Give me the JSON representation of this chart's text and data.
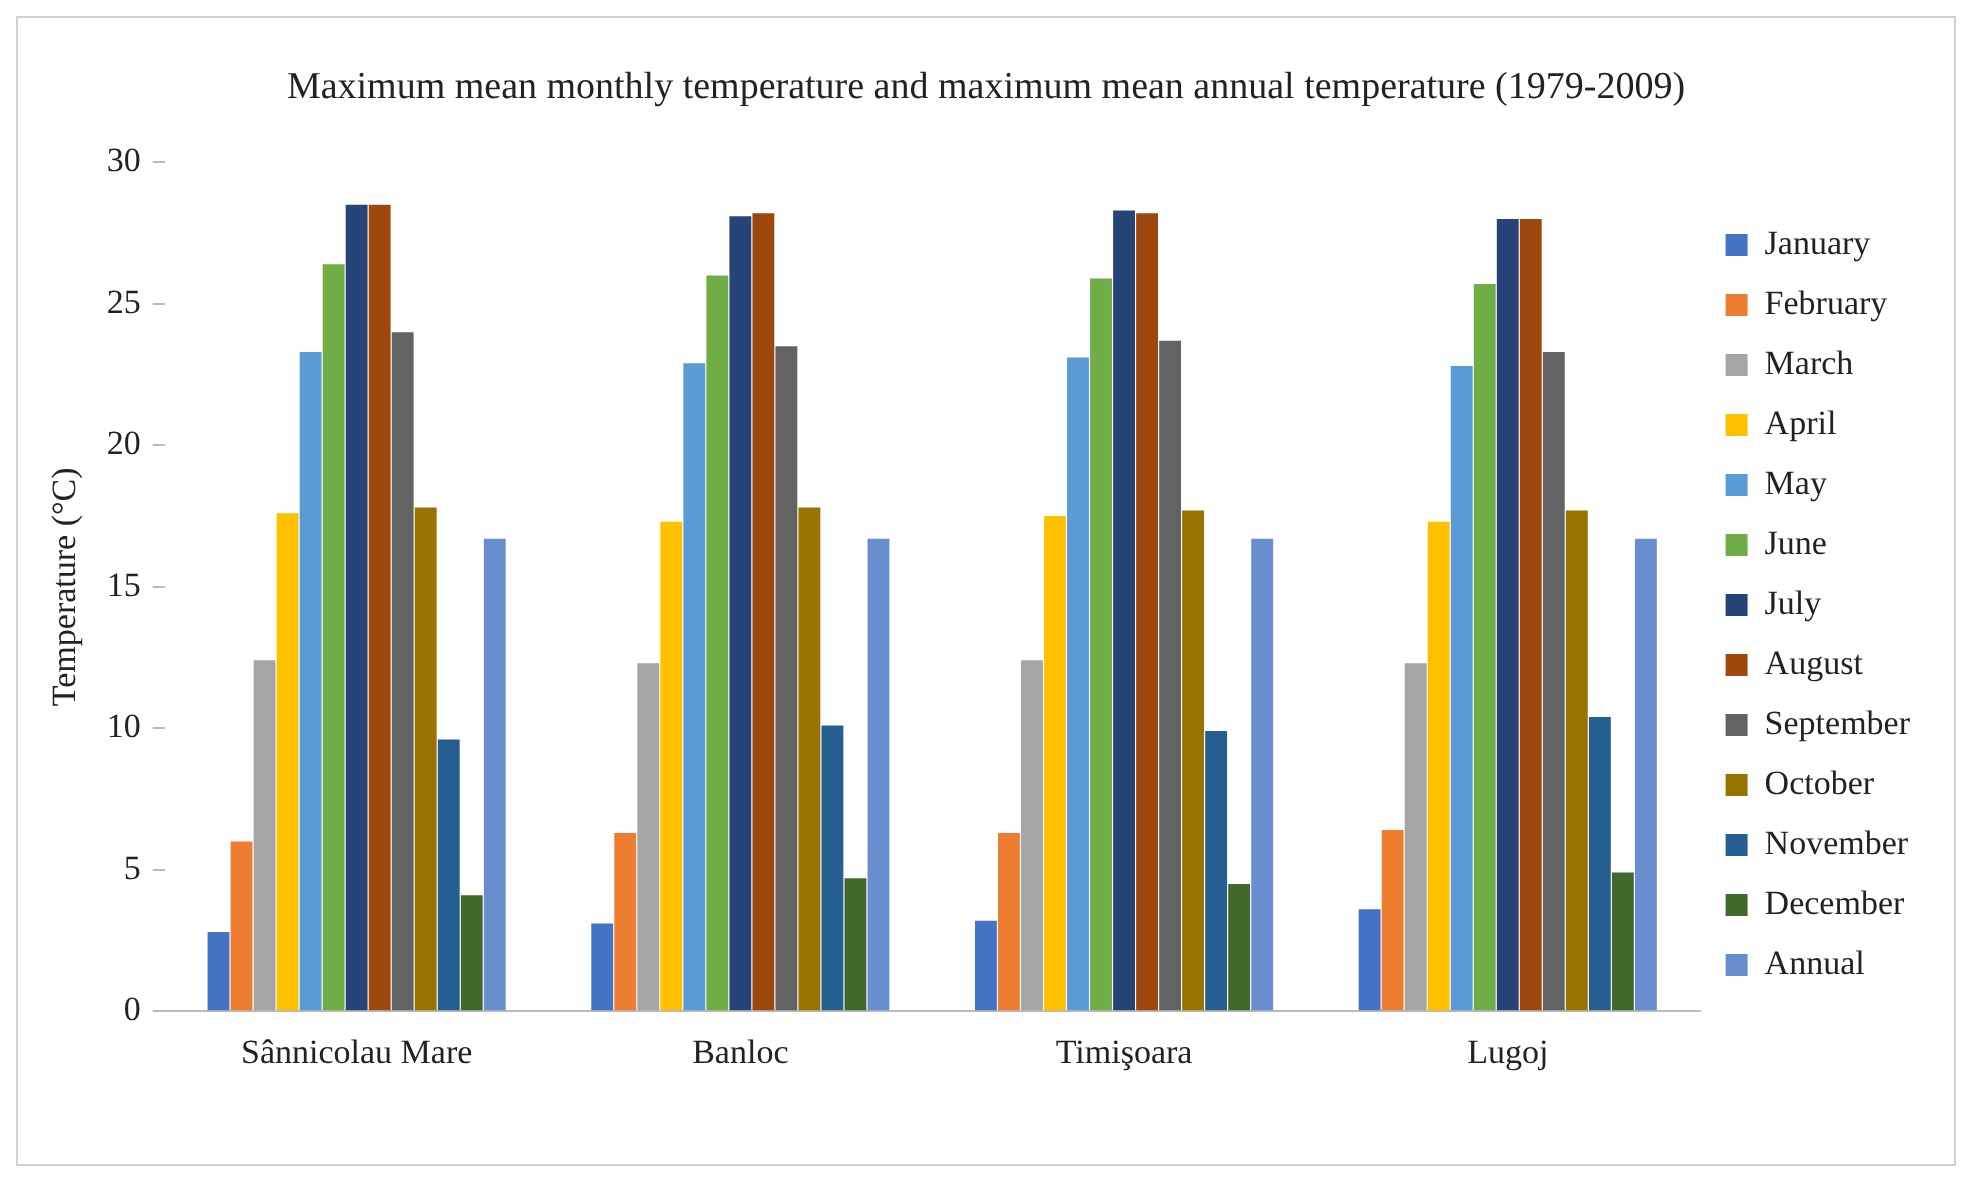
{
  "chart_data": {
    "type": "bar",
    "title": "Maximum mean monthly temperature and maximum mean annual temperature (1979-2009)",
    "ylabel": "Temperature (°C)",
    "categories": [
      "Sânnicolau Mare",
      "Banloc",
      "Timişoara",
      "Lugoj"
    ],
    "series": [
      {
        "name": "January",
        "color": "#4472c4",
        "values": [
          2.8,
          3.1,
          3.2,
          3.6
        ]
      },
      {
        "name": "February",
        "color": "#ed7d31",
        "values": [
          6.0,
          6.3,
          6.3,
          6.4
        ]
      },
      {
        "name": "March",
        "color": "#a5a5a5",
        "values": [
          12.4,
          12.3,
          12.4,
          12.3
        ]
      },
      {
        "name": "April",
        "color": "#ffc000",
        "values": [
          17.6,
          17.3,
          17.5,
          17.3
        ]
      },
      {
        "name": "May",
        "color": "#5b9bd5",
        "values": [
          23.3,
          22.9,
          23.1,
          22.8
        ]
      },
      {
        "name": "June",
        "color": "#70ad47",
        "values": [
          26.4,
          26.0,
          25.9,
          25.7
        ]
      },
      {
        "name": "July",
        "color": "#264478",
        "values": [
          28.5,
          28.1,
          28.3,
          28.0
        ]
      },
      {
        "name": "August",
        "color": "#9e480e",
        "values": [
          28.5,
          28.2,
          28.2,
          28.0
        ]
      },
      {
        "name": "September",
        "color": "#636363",
        "values": [
          24.0,
          23.5,
          23.7,
          23.3
        ]
      },
      {
        "name": "October",
        "color": "#997300",
        "values": [
          17.8,
          17.8,
          17.7,
          17.7
        ]
      },
      {
        "name": "November",
        "color": "#255e91",
        "values": [
          9.6,
          10.1,
          9.9,
          10.4
        ]
      },
      {
        "name": "December",
        "color": "#43682b",
        "values": [
          4.1,
          4.7,
          4.5,
          4.9
        ]
      },
      {
        "name": "Annual",
        "color": "#698ed0",
        "values": [
          16.7,
          16.7,
          16.7,
          16.7
        ]
      }
    ],
    "ylim": [
      0,
      30
    ],
    "yticks": [
      0,
      5,
      10,
      15,
      20,
      25,
      30
    ],
    "legend": "right"
  }
}
